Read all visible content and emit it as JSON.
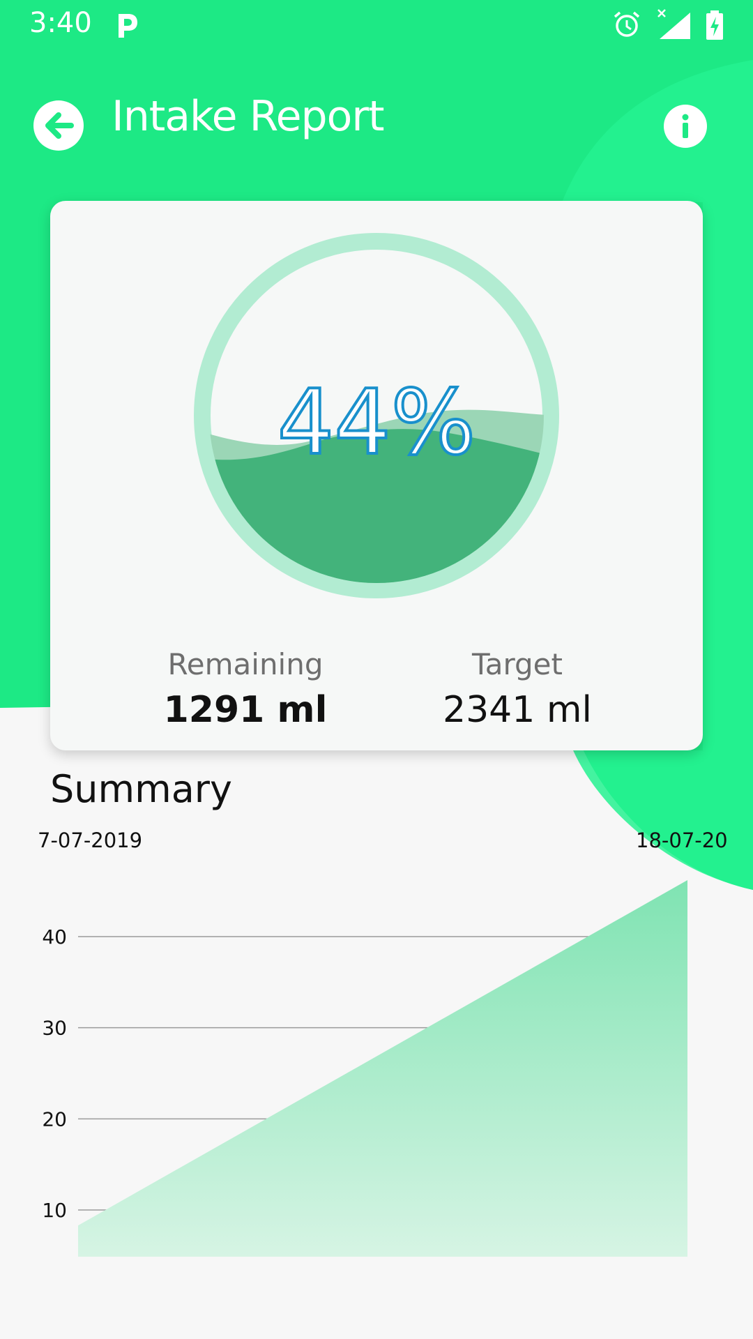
{
  "status_bar": {
    "time": "3:40",
    "icons": [
      "parking-icon",
      "alarm-icon",
      "signal-icon",
      "battery-charging-icon"
    ]
  },
  "header": {
    "title": "Intake Report",
    "back_icon": "arrow-left-icon",
    "info_icon": "info-icon"
  },
  "intake": {
    "percent_label": "44%",
    "percent_value": 0.44,
    "remaining_label": "Remaining",
    "remaining_value": "1291 ml",
    "target_label": "Target",
    "target_value": "2341 ml"
  },
  "summary": {
    "title": "Summary",
    "date_start": "7-07-2019",
    "date_end": "18-07-20"
  },
  "colors": {
    "brand_green": "#1de985",
    "water_green": "#43b37b",
    "ring_green": "#b2ecd2",
    "chart_fill_top": "#7fe3b2",
    "chart_fill_bottom": "#d6f4e4",
    "percent_text": "#1990cc"
  },
  "chart_data": {
    "type": "area",
    "title": "Summary",
    "xlabel": "",
    "ylabel": "",
    "ylim": [
      5,
      47
    ],
    "yticks": [
      10,
      20,
      30,
      40
    ],
    "x": [
      "7-07-2019",
      "18-07-20"
    ],
    "series": [
      {
        "values": [
          8.3,
          46.2
        ]
      }
    ],
    "grid": true,
    "legend": "none"
  }
}
